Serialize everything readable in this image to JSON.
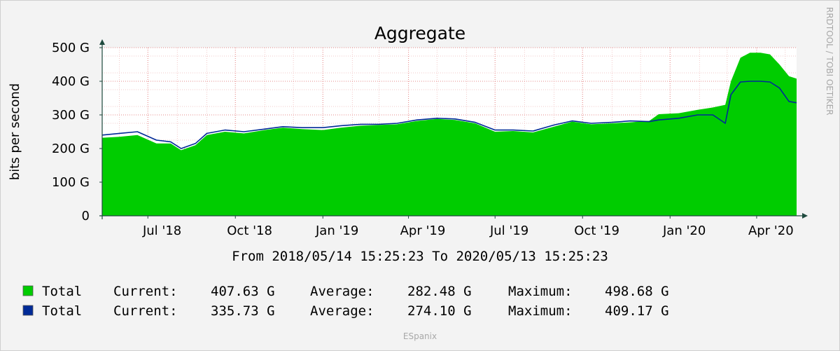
{
  "chart_data": {
    "type": "area",
    "title": "Aggregate",
    "ylabel": "bits per second",
    "xlabel": "",
    "ylim": [
      0,
      500
    ],
    "y_unit": "G",
    "y_ticks": [
      {
        "value": 0,
        "label": "0"
      },
      {
        "value": 100,
        "label": "100 G"
      },
      {
        "value": 200,
        "label": "200 G"
      },
      {
        "value": 300,
        "label": "300 G"
      },
      {
        "value": 400,
        "label": "400 G"
      },
      {
        "value": 500,
        "label": "500 G"
      }
    ],
    "x_range": [
      "2018-05-14",
      "2020-05-13"
    ],
    "x_ticks": [
      {
        "date": "2018-07-01",
        "label": "Jul '18"
      },
      {
        "date": "2018-10-01",
        "label": "Oct '18"
      },
      {
        "date": "2019-01-01",
        "label": "Jan '19"
      },
      {
        "date": "2019-04-01",
        "label": "Apr '19"
      },
      {
        "date": "2019-07-01",
        "label": "Jul '19"
      },
      {
        "date": "2019-10-01",
        "label": "Oct '19"
      },
      {
        "date": "2020-01-01",
        "label": "Jan '20"
      },
      {
        "date": "2020-04-01",
        "label": "Apr '20"
      }
    ],
    "grid": true,
    "subtitle": "From 2018/05/14 15:25:23 To 2020/05/13 15:25:23",
    "series": [
      {
        "color": "#00cc00",
        "style": "area",
        "x": [
          "2018-05-14",
          "2018-06-01",
          "2018-06-20",
          "2018-07-10",
          "2018-07-25",
          "2018-08-05",
          "2018-08-20",
          "2018-09-01",
          "2018-09-20",
          "2018-10-10",
          "2018-11-01",
          "2018-11-20",
          "2018-12-10",
          "2019-01-01",
          "2019-01-20",
          "2019-02-10",
          "2019-03-01",
          "2019-03-20",
          "2019-04-10",
          "2019-05-01",
          "2019-05-20",
          "2019-06-10",
          "2019-07-01",
          "2019-07-20",
          "2019-08-10",
          "2019-09-01",
          "2019-09-20",
          "2019-10-10",
          "2019-11-01",
          "2019-11-20",
          "2019-12-10",
          "2019-12-20",
          "2020-01-10",
          "2020-01-30",
          "2020-02-15",
          "2020-02-28",
          "2020-03-05",
          "2020-03-15",
          "2020-03-25",
          "2020-04-05",
          "2020-04-15",
          "2020-04-25",
          "2020-05-05",
          "2020-05-13"
        ],
        "values": [
          232,
          235,
          240,
          215,
          215,
          195,
          210,
          240,
          250,
          245,
          255,
          262,
          258,
          255,
          262,
          268,
          270,
          272,
          282,
          288,
          285,
          275,
          250,
          252,
          248,
          265,
          280,
          272,
          275,
          278,
          282,
          302,
          305,
          315,
          322,
          330,
          400,
          470,
          485,
          485,
          480,
          450,
          415,
          408
        ]
      },
      {
        "color": "#002a97",
        "style": "line",
        "x": [
          "2018-05-14",
          "2018-06-01",
          "2018-06-20",
          "2018-07-10",
          "2018-07-25",
          "2018-08-05",
          "2018-08-20",
          "2018-09-01",
          "2018-09-20",
          "2018-10-10",
          "2018-11-01",
          "2018-11-20",
          "2018-12-10",
          "2019-01-01",
          "2019-01-20",
          "2019-02-10",
          "2019-03-01",
          "2019-03-20",
          "2019-04-10",
          "2019-05-01",
          "2019-05-20",
          "2019-06-10",
          "2019-07-01",
          "2019-07-20",
          "2019-08-10",
          "2019-09-01",
          "2019-09-20",
          "2019-10-10",
          "2019-11-01",
          "2019-11-20",
          "2019-12-10",
          "2019-12-20",
          "2020-01-10",
          "2020-01-30",
          "2020-02-15",
          "2020-02-28",
          "2020-03-05",
          "2020-03-15",
          "2020-03-25",
          "2020-04-05",
          "2020-04-15",
          "2020-04-25",
          "2020-05-05",
          "2020-05-13"
        ],
        "values": [
          240,
          245,
          250,
          225,
          220,
          200,
          215,
          245,
          255,
          250,
          258,
          265,
          262,
          262,
          268,
          272,
          272,
          275,
          285,
          290,
          288,
          278,
          255,
          255,
          252,
          270,
          282,
          275,
          278,
          282,
          280,
          285,
          290,
          300,
          300,
          275,
          360,
          398,
          400,
          400,
          398,
          380,
          340,
          336
        ]
      }
    ],
    "legend": [
      {
        "color": "#00cc00",
        "label": "Total",
        "current": "407.63 G",
        "average": "282.48 G",
        "maximum": "498.68 G"
      },
      {
        "color": "#002a97",
        "label": "Total",
        "current": "335.73 G",
        "average": "274.10 G",
        "maximum": "409.17 G"
      }
    ]
  },
  "legend_labels": {
    "current": "Current:",
    "average": "Average:",
    "maximum": "Maximum:"
  },
  "credit": "RRDTOOL / TOBI OETIKER",
  "footer": "ESpanix"
}
